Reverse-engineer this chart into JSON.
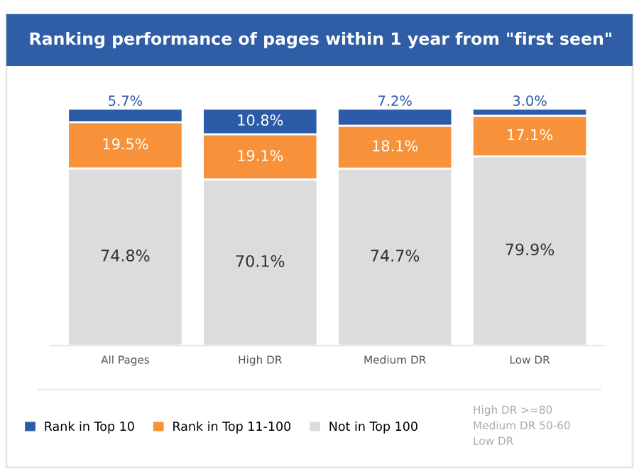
{
  "chart_data": {
    "type": "bar",
    "title": "Ranking performance of pages within 1 year from \"first seen\"",
    "categories": [
      "All Pages",
      "High DR",
      "Medium DR",
      "Low DR"
    ],
    "stacked": true,
    "legend": "bottom",
    "series": [
      {
        "name": "Not in Top 100",
        "color": "#dcdcdc",
        "values": [
          74.8,
          70.1,
          74.7,
          79.9
        ],
        "value_labels": [
          "74.8%",
          "70.1%",
          "74.7%",
          "79.9%"
        ]
      },
      {
        "name": "Rank in Top 11-100",
        "color": "#f7923a",
        "values": [
          19.5,
          19.1,
          18.1,
          17.1
        ],
        "value_labels": [
          "19.5%",
          "19.1%",
          "18.1%",
          "17.1%"
        ]
      },
      {
        "name": "Rank in Top 10",
        "color": "#2c5ba8",
        "values": [
          5.7,
          10.8,
          7.2,
          3.0
        ],
        "value_labels": [
          "5.7%",
          "10.8%",
          "7.2%",
          "3.0%"
        ]
      }
    ],
    "annotations": [
      "High DR >=80",
      "Medium DR 50-60",
      "Low DR"
    ]
  }
}
